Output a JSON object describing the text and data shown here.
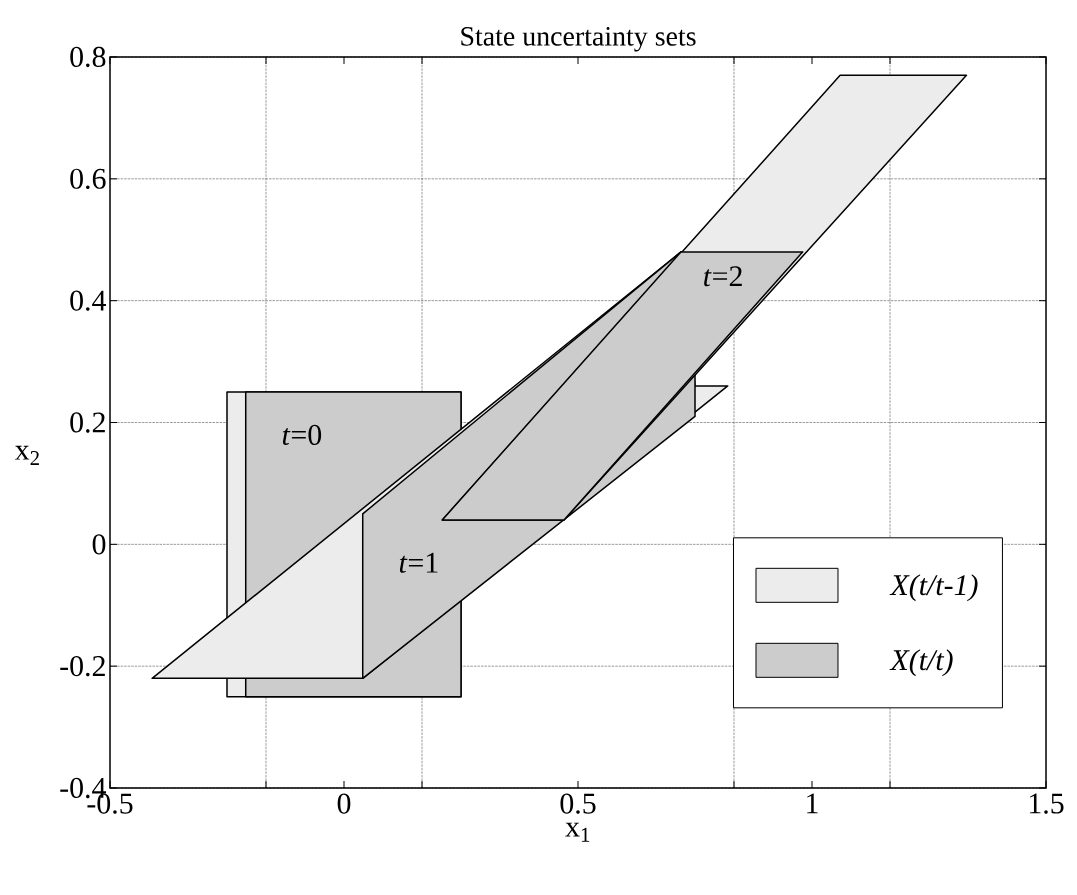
{
  "chart_data": {
    "type": "area",
    "title": "State uncertainty sets",
    "xlabel": "x$_{1}$",
    "ylabel": "x$_{2}$",
    "xlim": [
      -0.5,
      1.5
    ],
    "ylim": [
      -0.4,
      0.8
    ],
    "xticks": [
      -0.5,
      {
        "value": -0.1667,
        "label": null
      },
      0,
      {
        "value": 0.1667,
        "label": null
      },
      0.5,
      {
        "value": 0.8333,
        "label": null
      },
      1,
      {
        "value": 1.1667,
        "label": null
      },
      1.5
    ],
    "yticks": [
      -0.4,
      -0.2,
      0,
      0.2,
      0.4,
      0.6,
      0.8
    ],
    "grid": true,
    "legend": "bottom right",
    "series": [
      {
        "name": "*X(t/t-1)*",
        "color": "#ececec",
        "x": [
          -0.25,
          0.25,
          0.25,
          -0.25
        ],
        "values": [
          -0.25,
          -0.25,
          0.25,
          0.25
        ]
      },
      {
        "name": "*X(t/t)*",
        "color": "#cccccc",
        "x": [
          -0.21,
          0.25,
          0.25,
          -0.21
        ],
        "values": [
          -0.25,
          -0.25,
          0.25,
          0.25
        ]
      },
      {
        "color": "#ececec",
        "x": [
          -0.41,
          0.04,
          0.82,
          0.75,
          0.72
        ],
        "values": [
          -0.22,
          -0.22,
          0.26,
          0.26,
          0.48
        ]
      },
      {
        "color": "#cccccc",
        "x": [
          0.04,
          0.75,
          0.75,
          0.72,
          0.04
        ],
        "values": [
          -0.22,
          0.21,
          0.28,
          0.48,
          0.05
        ]
      },
      {
        "color": "#ececec",
        "x": [
          0.21,
          0.47,
          1.33,
          1.06
        ],
        "values": [
          0.04,
          0.04,
          0.77,
          0.77
        ]
      },
      {
        "color": "#cccccc",
        "x": [
          0.21,
          0.47,
          0.98,
          0.72
        ],
        "values": [
          0.04,
          0.04,
          0.48,
          0.48
        ]
      }
    ],
    "annotations": [
      "*t*=0",
      "*t*=1",
      "*t*=2"
    ]
  }
}
